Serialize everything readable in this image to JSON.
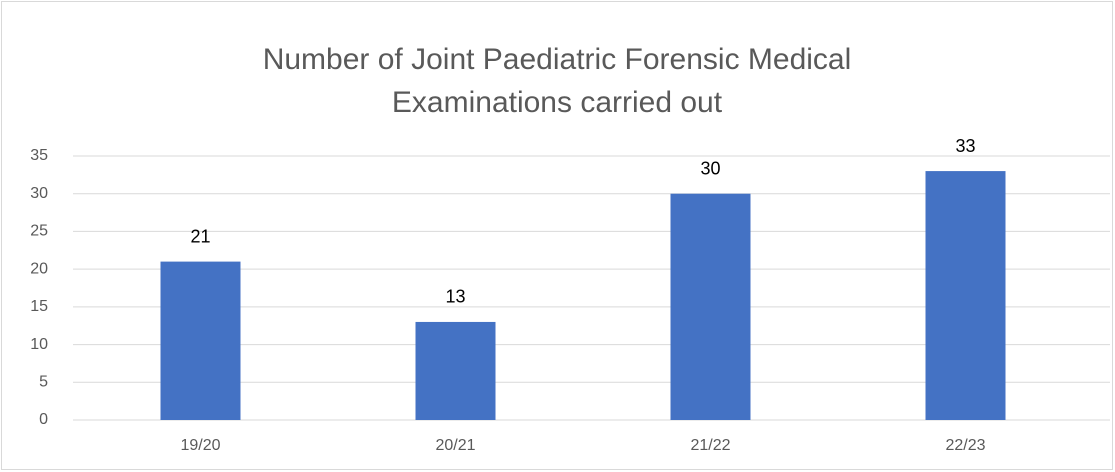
{
  "chart_data": {
    "type": "bar",
    "title": "Number of Joint Paediatric Forensic Medical Examinations carried out",
    "categories": [
      "19/20",
      "20/21",
      "21/22",
      "22/23"
    ],
    "values": [
      21,
      13,
      30,
      33
    ],
    "color": "#4472c4",
    "ylim": [
      0,
      35
    ],
    "yticks": [
      0,
      5,
      10,
      15,
      20,
      25,
      30,
      35
    ],
    "grid": true
  }
}
